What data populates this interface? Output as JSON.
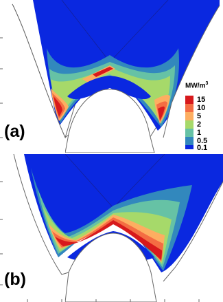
{
  "panels": [
    {
      "label": "(a)"
    },
    {
      "label": "(b)"
    }
  ],
  "legend": {
    "unit_base": "MW/m",
    "unit_exp": "3",
    "entries": [
      {
        "label": "15",
        "color": "#d7191c"
      },
      {
        "label": "10",
        "color": "#f46d43"
      },
      {
        "label": "5",
        "color": "#fdae61"
      },
      {
        "label": "2",
        "color": "#a6d96a"
      },
      {
        "label": "1",
        "color": "#66c2a5"
      },
      {
        "label": "0.5",
        "color": "#3288bd"
      },
      {
        "label": "0.1",
        "color": "#0a28e0"
      }
    ]
  },
  "colors": {
    "background_level": "#0a28e0",
    "outline": "#444444"
  }
}
